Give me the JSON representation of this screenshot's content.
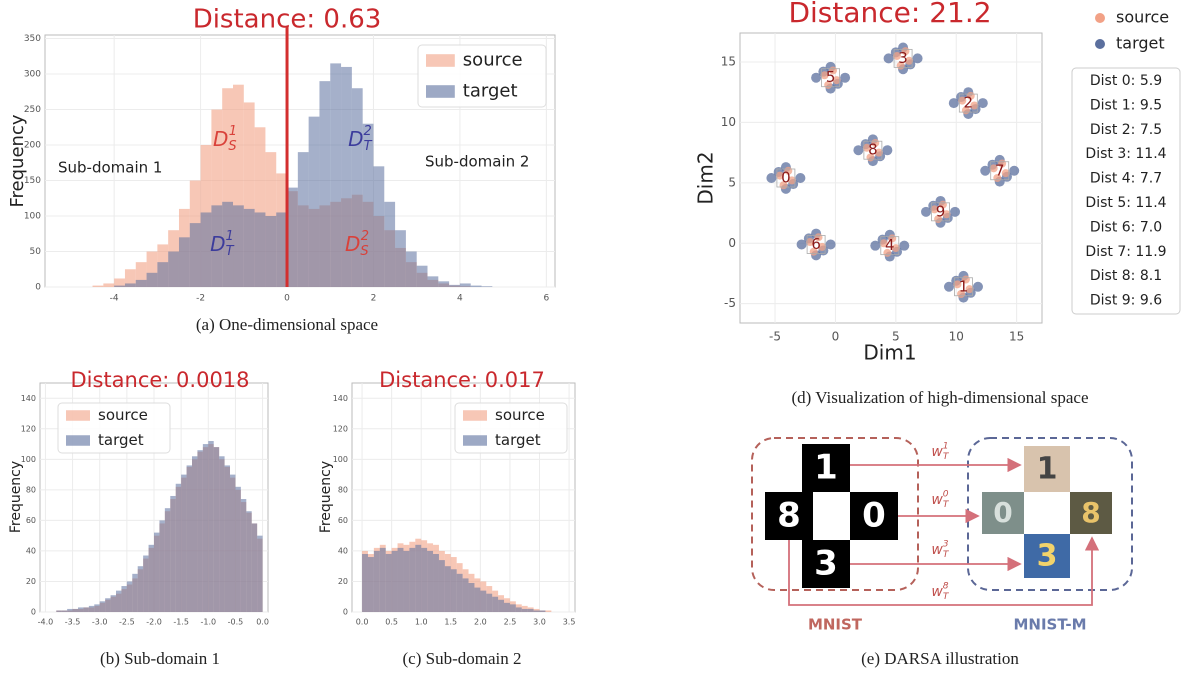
{
  "chart_data": [
    {
      "type": "histogram",
      "title": "Distance: 0.63",
      "y_label": "Frequency",
      "bins": [
        -5,
        -4.75,
        -4.5,
        -4.25,
        -4,
        -3.75,
        -3.5,
        -3.25,
        -3,
        -2.75,
        -2.5,
        -2.25,
        -2,
        -1.75,
        -1.5,
        -1.25,
        -1,
        -0.75,
        -0.5,
        -0.25,
        0,
        0.25,
        0.5,
        0.75,
        1,
        1.25,
        1.5,
        1.75,
        2,
        2.25,
        2.5,
        2.75,
        3,
        3.25,
        3.5,
        3.75,
        4,
        4.25,
        4.5,
        4.75,
        5,
        5.25,
        5.5,
        5.75,
        6
      ],
      "series": [
        {
          "name": "source",
          "color": "#f2a186",
          "values": [
            0,
            0,
            2,
            5,
            12,
            25,
            35,
            50,
            60,
            80,
            110,
            150,
            200,
            250,
            280,
            285,
            260,
            225,
            190,
            160,
            135,
            115,
            110,
            115,
            120,
            125,
            130,
            120,
            100,
            80,
            55,
            35,
            20,
            10,
            5,
            2,
            1,
            0,
            0,
            0,
            0,
            0,
            0,
            0
          ]
        },
        {
          "name": "target",
          "color": "#5b6f9e",
          "values": [
            0,
            0,
            0,
            0,
            2,
            5,
            10,
            20,
            35,
            50,
            70,
            90,
            105,
            115,
            120,
            115,
            110,
            105,
            100,
            105,
            140,
            190,
            240,
            290,
            315,
            310,
            280,
            230,
            170,
            120,
            80,
            50,
            30,
            15,
            8,
            3,
            5,
            2,
            1,
            0,
            0,
            0,
            0,
            0
          ]
        }
      ],
      "divider_x": 0,
      "divider_color": "#d32f2f",
      "xlim": [
        -5.6,
        6.2
      ],
      "xticks": [
        -4,
        -2,
        0,
        2,
        4,
        6
      ],
      "ylim": [
        0,
        355
      ],
      "yticks": [
        0,
        50,
        100,
        150,
        200,
        250,
        300,
        350
      ],
      "grid": true,
      "legend": "upper right",
      "annotations": [
        {
          "text": "Sub-domain 1"
        },
        {
          "text": "Sub-domain 2"
        },
        {
          "base": "D",
          "sub": "S",
          "sup": "1",
          "color": "#d9413a"
        },
        {
          "base": "D",
          "sub": "T",
          "sup": "2",
          "color": "#3c3c9c"
        },
        {
          "base": "D",
          "sub": "T",
          "sup": "1",
          "color": "#3c3c9c"
        },
        {
          "base": "D",
          "sub": "S",
          "sup": "2",
          "color": "#d9413a"
        }
      ]
    },
    {
      "type": "histogram",
      "title": "Distance: 0.0018",
      "y_label": "Frequency",
      "bins": [
        -4,
        -3.9,
        -3.8,
        -3.7,
        -3.6,
        -3.5,
        -3.4,
        -3.3,
        -3.2,
        -3.1,
        -3,
        -2.9,
        -2.8,
        -2.7,
        -2.6,
        -2.5,
        -2.4,
        -2.3,
        -2.2,
        -2.1,
        -2,
        -1.9,
        -1.8,
        -1.7,
        -1.6,
        -1.5,
        -1.4,
        -1.3,
        -1.2,
        -1.1,
        -1,
        -0.9,
        -0.8,
        -0.7,
        -0.6,
        -0.5,
        -0.4,
        -0.3,
        -0.2,
        -0.1,
        0
      ],
      "series": [
        {
          "name": "source",
          "color": "#f2a186",
          "values": [
            0,
            0,
            1,
            1,
            1,
            2,
            2,
            3,
            3,
            4,
            6,
            8,
            10,
            12,
            15,
            18,
            22,
            28,
            35,
            42,
            50,
            58,
            66,
            74,
            82,
            88,
            95,
            100,
            105,
            108,
            110,
            108,
            100,
            95,
            88,
            80,
            72,
            65,
            58,
            48
          ]
        },
        {
          "name": "target",
          "color": "#5b6f9e",
          "values": [
            0,
            0,
            1,
            1,
            2,
            2,
            3,
            3,
            4,
            5,
            7,
            9,
            11,
            14,
            17,
            20,
            25,
            30,
            37,
            44,
            52,
            60,
            68,
            76,
            84,
            90,
            96,
            102,
            106,
            110,
            112,
            108,
            102,
            96,
            90,
            82,
            74,
            66,
            58,
            50
          ]
        }
      ],
      "xlim": [
        -4.1,
        0.1
      ],
      "xticks": [
        {
          "value": -4,
          "label": "-4.0"
        },
        -3.5,
        {
          "value": -3,
          "label": "-3.0"
        },
        -2.5,
        {
          "value": -2,
          "label": "-2.0"
        },
        -1.5,
        {
          "value": -1,
          "label": "-1.0"
        },
        -0.5,
        {
          "value": 0,
          "label": "0.0"
        }
      ],
      "ylim": [
        0,
        150
      ],
      "yticks": [
        0,
        20,
        40,
        60,
        80,
        100,
        120,
        140
      ],
      "grid": true,
      "legend": "upper left"
    },
    {
      "type": "histogram",
      "title": "Distance: 0.017",
      "y_label": "Frequency",
      "bins": [
        0,
        0.1,
        0.2,
        0.3,
        0.4,
        0.5,
        0.6,
        0.7,
        0.8,
        0.9,
        1,
        1.1,
        1.2,
        1.3,
        1.4,
        1.5,
        1.6,
        1.7,
        1.8,
        1.9,
        2,
        2.1,
        2.2,
        2.3,
        2.4,
        2.5,
        2.6,
        2.7,
        2.8,
        2.9,
        3,
        3.1,
        3.2
      ],
      "series": [
        {
          "name": "source",
          "color": "#f2a186",
          "values": [
            40,
            38,
            42,
            44,
            40,
            42,
            45,
            44,
            46,
            48,
            47,
            45,
            44,
            40,
            38,
            36,
            32,
            28,
            25,
            22,
            20,
            17,
            14,
            11,
            9,
            7,
            5,
            4,
            3,
            2,
            1,
            1
          ]
        },
        {
          "name": "target",
          "color": "#5b6f9e",
          "values": [
            38,
            36,
            40,
            42,
            38,
            40,
            42,
            40,
            42,
            44,
            42,
            40,
            38,
            34,
            30,
            28,
            25,
            22,
            19,
            16,
            14,
            12,
            10,
            8,
            6,
            5,
            3,
            2,
            2,
            1,
            1,
            0
          ]
        }
      ],
      "xlim": [
        -0.17,
        3.6
      ],
      "xticks": [
        {
          "value": 0,
          "label": "0.0"
        },
        0.5,
        {
          "value": 1,
          "label": "1.0"
        },
        1.5,
        {
          "value": 2,
          "label": "2.0"
        },
        2.5,
        {
          "value": 3,
          "label": "3.0"
        },
        3.5
      ],
      "ylim": [
        0,
        150
      ],
      "yticks": [
        0,
        20,
        40,
        60,
        80,
        100,
        120,
        140
      ],
      "grid": true,
      "legend": "upper right"
    },
    {
      "type": "scatter",
      "title": "Distance: 21.2",
      "x_label": "Dim1",
      "y_label": "Dim2",
      "series": [
        {
          "name": "source",
          "color": "#f2a186",
          "x": [
            -4.6,
            -3.6,
            -3.9,
            -4.3,
            10.1,
            11.1,
            10.8,
            10.4,
            10.5,
            11.5,
            11.2,
            10.8,
            5.1,
            6.1,
            5.8,
            5.4,
            4.0,
            5.0,
            4.7,
            4.3,
            -0.9,
            0.1,
            -0.2,
            -0.6,
            -2.1,
            -1.1,
            -1.4,
            -1.8,
            13.1,
            14.1,
            13.8,
            13.4,
            2.6,
            3.6,
            3.3,
            2.9,
            8.2,
            9.2,
            8.9,
            8.5
          ],
          "y": [
            5.6,
            5.2,
            6.0,
            4.8,
            -3.4,
            -3.8,
            -3.0,
            -4.2,
            11.8,
            11.4,
            12.2,
            11.0,
            15.5,
            15.1,
            15.9,
            14.7,
            0.0,
            -0.4,
            0.4,
            -0.8,
            13.9,
            13.5,
            14.3,
            13.1,
            0.1,
            -0.3,
            0.5,
            -0.7,
            6.2,
            5.8,
            6.6,
            5.4,
            7.9,
            7.5,
            8.3,
            7.1,
            2.8,
            2.4,
            3.2,
            2.0
          ]
        },
        {
          "name": "target",
          "color": "#5b6f9e",
          "x": [
            -5.3,
            -2.9,
            -4.1,
            -4.1,
            -4.7,
            -3.5,
            9.4,
            11.8,
            10.6,
            10.6,
            10.0,
            11.2,
            9.8,
            12.2,
            11,
            11,
            10.4,
            11.6,
            4.4,
            6.8,
            5.6,
            5.6,
            5.0,
            6.2,
            3.3,
            5.7,
            4.5,
            4.5,
            3.9,
            5.1,
            -1.6,
            0.8,
            -0.4,
            -0.4,
            -1.0,
            0.2,
            -2.8,
            -0.4,
            -1.6,
            -1.6,
            -2.2,
            -1.0,
            12.4,
            14.8,
            13.6,
            13.6,
            13.0,
            14.2,
            1.9,
            4.3,
            3.1,
            3.1,
            2.5,
            3.7,
            7.5,
            9.9,
            8.7,
            8.7,
            8.1,
            9.3
          ],
          "y": [
            5.4,
            5.4,
            6.3,
            4.5,
            5.9,
            4.9,
            -3.6,
            -3.6,
            -2.7,
            -4.5,
            -3.1,
            -4.1,
            11.6,
            11.6,
            12.5,
            10.7,
            12.1,
            11.1,
            15.3,
            15.3,
            16.2,
            14.4,
            15.8,
            14.8,
            -0.2,
            -0.2,
            0.7,
            -1.1,
            0.3,
            -0.7,
            13.7,
            13.7,
            14.6,
            12.8,
            14.2,
            13.2,
            -0.1,
            -0.1,
            0.8,
            -1.0,
            0.4,
            -0.6,
            6.0,
            6.0,
            6.9,
            5.1,
            6.5,
            5.5,
            7.7,
            7.7,
            8.6,
            6.8,
            8.2,
            7.2,
            2.6,
            2.6,
            3.5,
            1.7,
            3.1,
            2.1
          ]
        }
      ],
      "cluster_labels": [
        {
          "text": "0",
          "x": -4.1,
          "y": 5.4
        },
        {
          "text": "1",
          "x": 10.6,
          "y": -3.6
        },
        {
          "text": "2",
          "x": 11,
          "y": 11.6
        },
        {
          "text": "3",
          "x": 5.6,
          "y": 15.3
        },
        {
          "text": "4",
          "x": 4.5,
          "y": -0.2
        },
        {
          "text": "5",
          "x": -0.4,
          "y": 13.7
        },
        {
          "text": "6",
          "x": -1.6,
          "y": -0.1
        },
        {
          "text": "7",
          "x": 13.6,
          "y": 6.0
        },
        {
          "text": "8",
          "x": 3.1,
          "y": 7.7
        },
        {
          "text": "9",
          "x": 8.7,
          "y": 2.6
        }
      ],
      "distances": [
        "Dist 0: 5.9",
        "Dist 1: 9.5",
        "Dist 2: 7.5",
        "Dist 3: 11.4",
        "Dist 4: 7.7",
        "Dist 5: 11.4",
        "Dist 6: 7.0",
        "Dist 7: 11.9",
        "Dist 8: 8.1",
        "Dist 9: 9.6"
      ],
      "xlim": [
        -7.9,
        17.1
      ],
      "xticks": [
        -5,
        0,
        5,
        10,
        15
      ],
      "ylim": [
        -6.6,
        17.4
      ],
      "yticks": [
        -5,
        0,
        5,
        10,
        15
      ],
      "grid": true,
      "legend": "outside right"
    }
  ],
  "captions": [
    "(a) One-dimensional space",
    "(b) Sub-domain 1",
    "(c) Sub-domain 2",
    "(d) Visualization of high-dimensional space",
    "(e) DARSA illustration"
  ],
  "diagram": {
    "source_label": "MNIST",
    "target_label": "MNIST-M",
    "source_digits": [
      "1",
      "8",
      "0",
      "3"
    ],
    "target_digits": [
      "1",
      "0",
      "8",
      "3"
    ],
    "weights": [
      {
        "base": "w",
        "sub": "T",
        "sup": "1"
      },
      {
        "base": "w",
        "sub": "T",
        "sup": "0"
      },
      {
        "base": "w",
        "sub": "T",
        "sup": "3"
      },
      {
        "base": "w",
        "sub": "T",
        "sup": "8"
      }
    ]
  }
}
